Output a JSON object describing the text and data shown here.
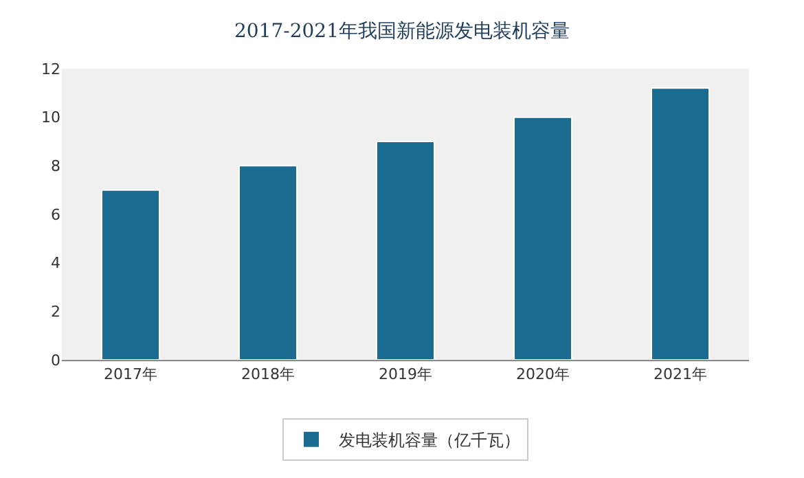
{
  "chart_data": {
    "type": "bar",
    "title": "2017-2021年我国新能源发电装机容量",
    "categories": [
      "2017年",
      "2018年",
      "2019年",
      "2020年",
      "2021年"
    ],
    "series": [
      {
        "name": "发电装机容量（亿千瓦）",
        "color": "#1b6a8f",
        "values": [
          7,
          8,
          9,
          10,
          11.2
        ]
      }
    ],
    "ylim": [
      0,
      12
    ],
    "yticks": [
      0,
      2,
      4,
      6,
      8,
      10,
      12
    ],
    "grid": false,
    "legend": "bottom"
  }
}
